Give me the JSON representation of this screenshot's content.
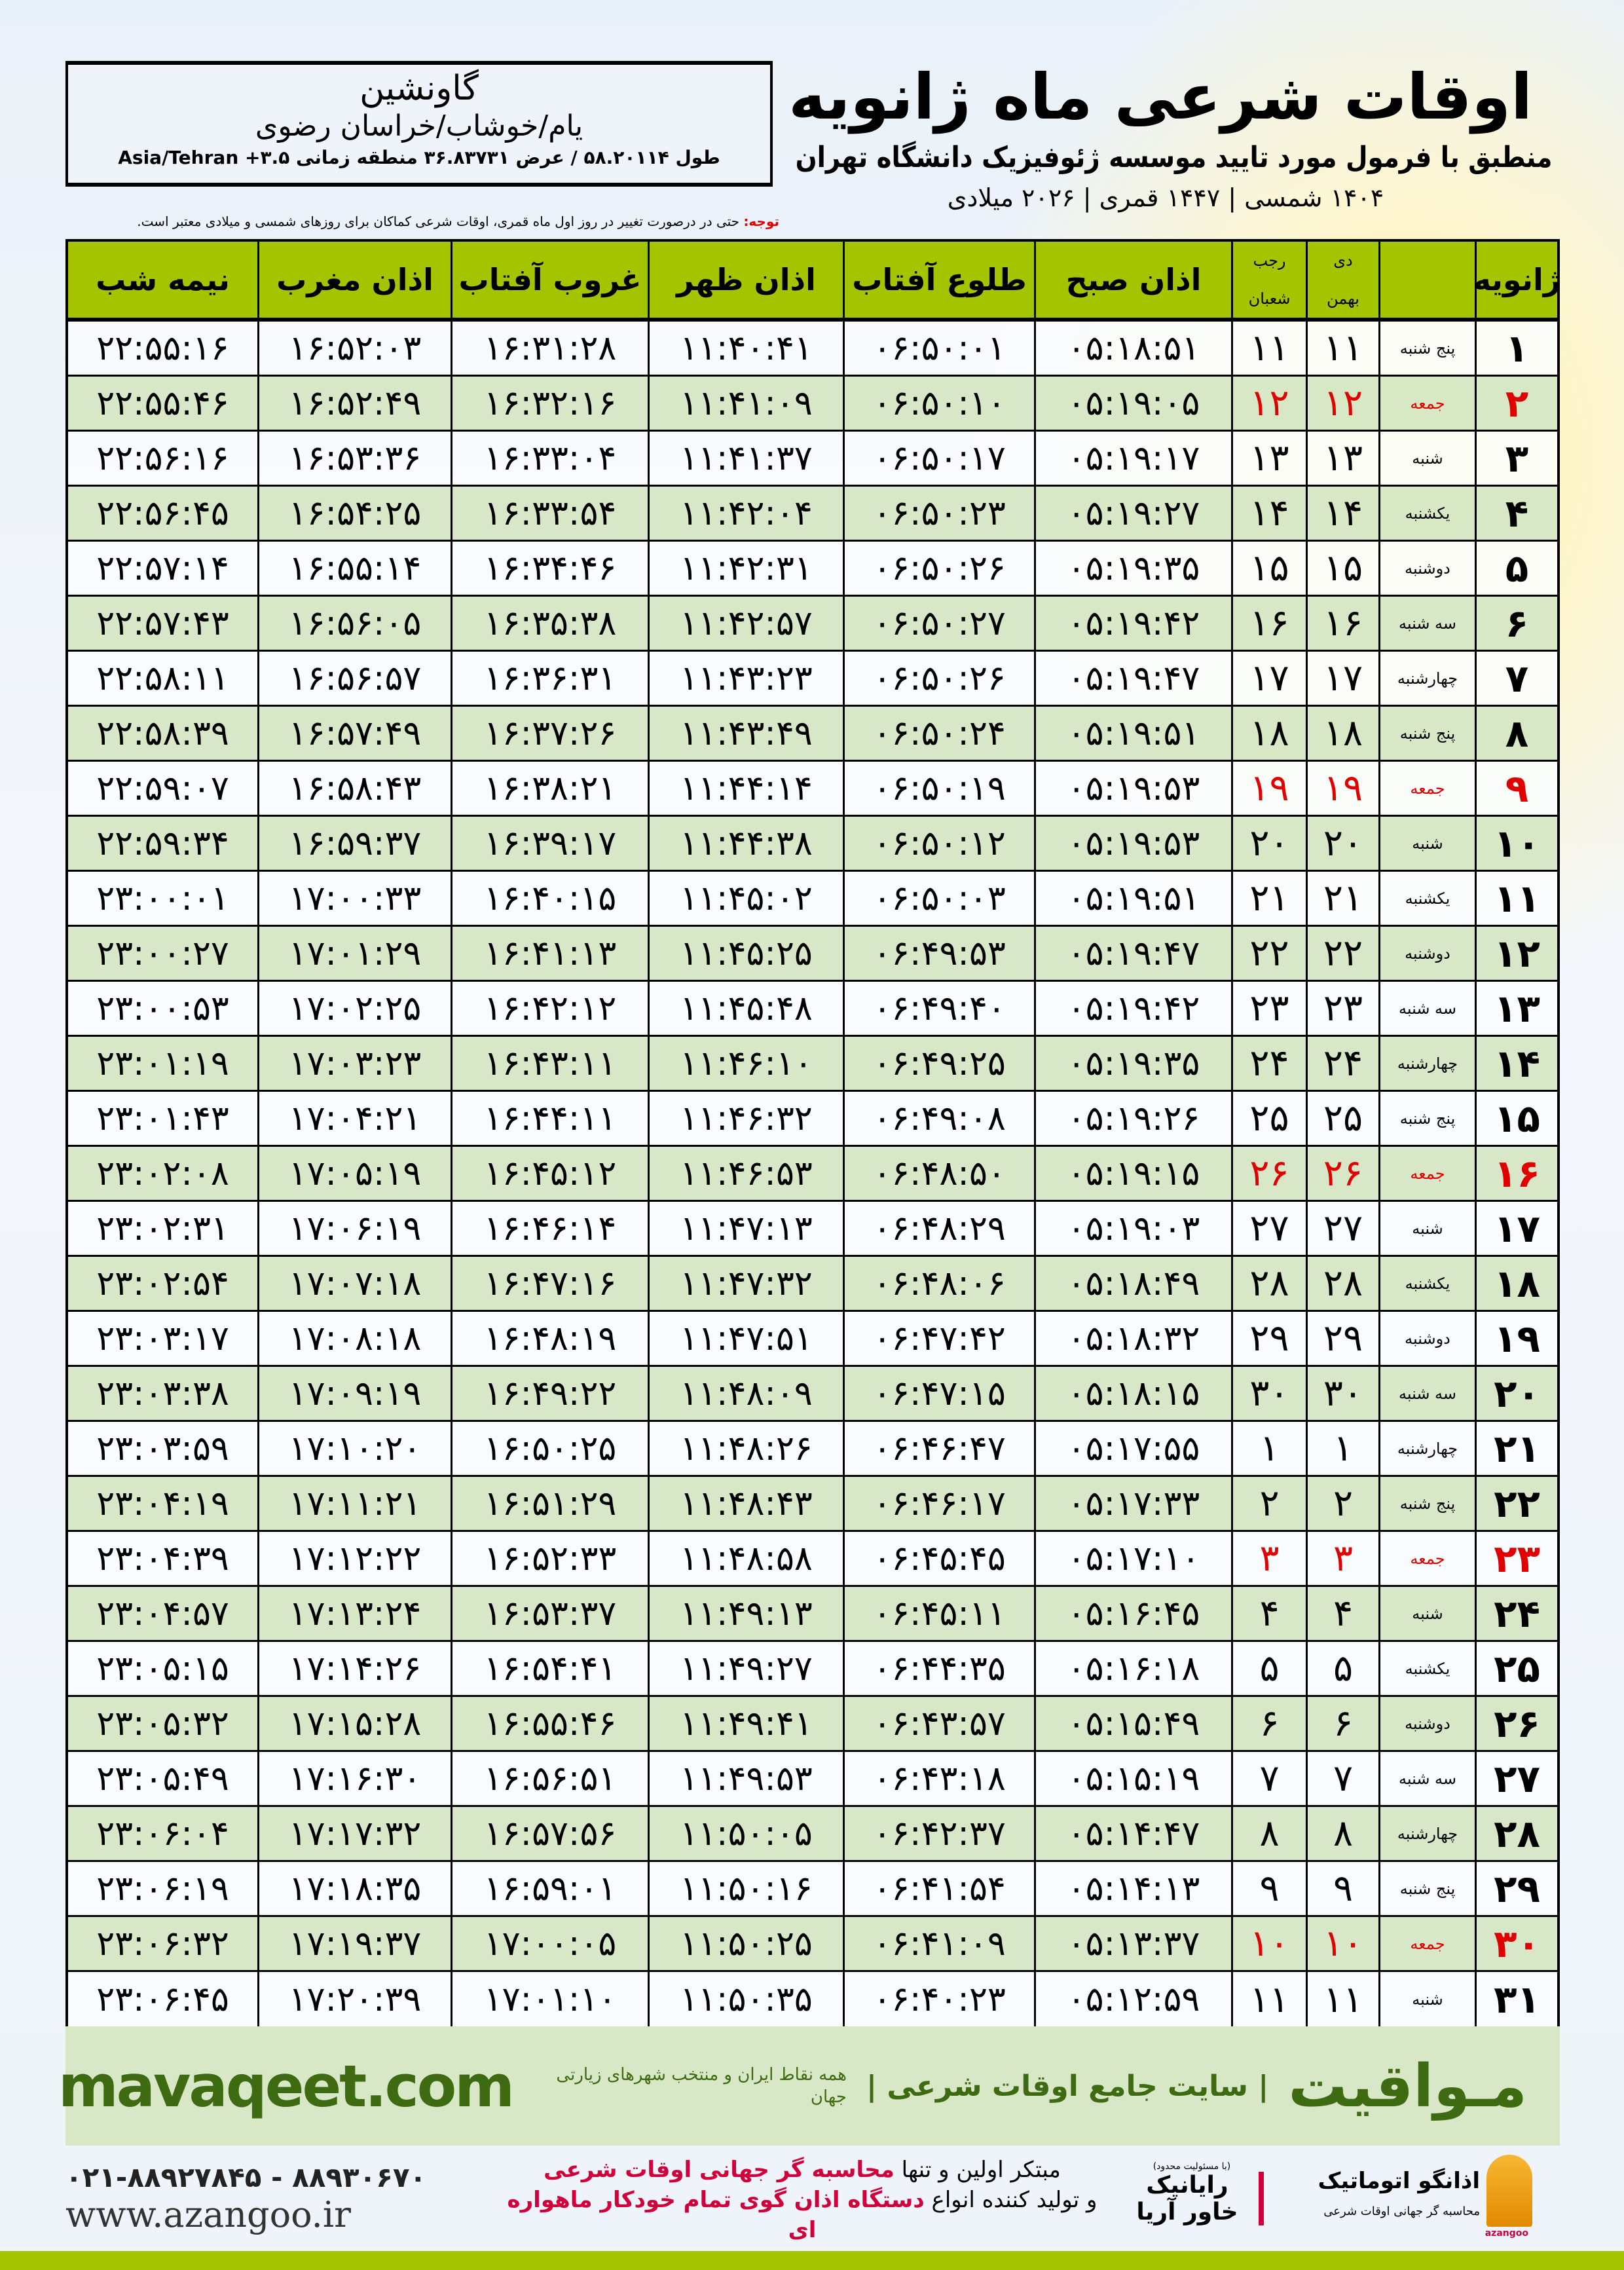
{
  "header": {
    "title": "اوقات شرعی ماه ژانویه",
    "subtitle": "منطبق با فرمول مورد تایید موسسه ژئوفیزیک دانشگاه تهران",
    "dateline": "۱۴۰۴ شمسی | ۱۴۴۷ قمری | ۲۰۲۶ میلادی"
  },
  "location": {
    "city": "گاونشین",
    "region": "یام/خوشاب/خراسان رضوی",
    "coords": "طول ۵۸.۲۰۱۱۴ / عرض ۳۶.۸۳۷۳۱ منطقه زمانی ۳.۵+ Asia/Tehran"
  },
  "note": {
    "label": "توجه:",
    "text": " حتی در درصورت تغییر در روز اول ماه قمری، اوقات شرعی کماکان برای روزهای شمسی و میلادی معتبر است."
  },
  "table": {
    "headers": {
      "month": "ژانویه",
      "solar_top": "دی",
      "solar_bottom": "بهمن",
      "lunar_top": "رجب",
      "lunar_bottom": "شعبان",
      "sobh": "اذان صبح",
      "tolu": "طلوع آفتاب",
      "zohr": "اذان ظهر",
      "ghorub": "غروب آفتاب",
      "maghreb": "اذان مغرب",
      "nime": "نیمه شب"
    },
    "holiday_color": "#e00000",
    "header_color": "#a4c400",
    "rows": [
      [
        "۱",
        "پنج شنبه",
        "۱۱",
        "۱۱",
        "۰۵:۱۸:۵۱",
        "۰۶:۵۰:۰۱",
        "۱۱:۴۰:۴۱",
        "۱۶:۳۱:۲۸",
        "۱۶:۵۲:۰۳",
        "۲۲:۵۵:۱۶",
        false
      ],
      [
        "۲",
        "جمعه",
        "۱۲",
        "۱۲",
        "۰۵:۱۹:۰۵",
        "۰۶:۵۰:۱۰",
        "۱۱:۴۱:۰۹",
        "۱۶:۳۲:۱۶",
        "۱۶:۵۲:۴۹",
        "۲۲:۵۵:۴۶",
        true
      ],
      [
        "۳",
        "شنبه",
        "۱۳",
        "۱۳",
        "۰۵:۱۹:۱۷",
        "۰۶:۵۰:۱۷",
        "۱۱:۴۱:۳۷",
        "۱۶:۳۳:۰۴",
        "۱۶:۵۳:۳۶",
        "۲۲:۵۶:۱۶",
        false
      ],
      [
        "۴",
        "یکشنبه",
        "۱۴",
        "۱۴",
        "۰۵:۱۹:۲۷",
        "۰۶:۵۰:۲۳",
        "۱۱:۴۲:۰۴",
        "۱۶:۳۳:۵۴",
        "۱۶:۵۴:۲۵",
        "۲۲:۵۶:۴۵",
        false
      ],
      [
        "۵",
        "دوشنبه",
        "۱۵",
        "۱۵",
        "۰۵:۱۹:۳۵",
        "۰۶:۵۰:۲۶",
        "۱۱:۴۲:۳۱",
        "۱۶:۳۴:۴۶",
        "۱۶:۵۵:۱۴",
        "۲۲:۵۷:۱۴",
        false
      ],
      [
        "۶",
        "سه شنبه",
        "۱۶",
        "۱۶",
        "۰۵:۱۹:۴۲",
        "۰۶:۵۰:۲۷",
        "۱۱:۴۲:۵۷",
        "۱۶:۳۵:۳۸",
        "۱۶:۵۶:۰۵",
        "۲۲:۵۷:۴۳",
        false
      ],
      [
        "۷",
        "چهارشنبه",
        "۱۷",
        "۱۷",
        "۰۵:۱۹:۴۷",
        "۰۶:۵۰:۲۶",
        "۱۱:۴۳:۲۳",
        "۱۶:۳۶:۳۱",
        "۱۶:۵۶:۵۷",
        "۲۲:۵۸:۱۱",
        false
      ],
      [
        "۸",
        "پنج شنبه",
        "۱۸",
        "۱۸",
        "۰۵:۱۹:۵۱",
        "۰۶:۵۰:۲۴",
        "۱۱:۴۳:۴۹",
        "۱۶:۳۷:۲۶",
        "۱۶:۵۷:۴۹",
        "۲۲:۵۸:۳۹",
        false
      ],
      [
        "۹",
        "جمعه",
        "۱۹",
        "۱۹",
        "۰۵:۱۹:۵۳",
        "۰۶:۵۰:۱۹",
        "۱۱:۴۴:۱۴",
        "۱۶:۳۸:۲۱",
        "۱۶:۵۸:۴۳",
        "۲۲:۵۹:۰۷",
        true
      ],
      [
        "۱۰",
        "شنبه",
        "۲۰",
        "۲۰",
        "۰۵:۱۹:۵۳",
        "۰۶:۵۰:۱۲",
        "۱۱:۴۴:۳۸",
        "۱۶:۳۹:۱۷",
        "۱۶:۵۹:۳۷",
        "۲۲:۵۹:۳۴",
        false
      ],
      [
        "۱۱",
        "یکشنبه",
        "۲۱",
        "۲۱",
        "۰۵:۱۹:۵۱",
        "۰۶:۵۰:۰۳",
        "۱۱:۴۵:۰۲",
        "۱۶:۴۰:۱۵",
        "۱۷:۰۰:۳۳",
        "۲۳:۰۰:۰۱",
        false
      ],
      [
        "۱۲",
        "دوشنبه",
        "۲۲",
        "۲۲",
        "۰۵:۱۹:۴۷",
        "۰۶:۴۹:۵۳",
        "۱۱:۴۵:۲۵",
        "۱۶:۴۱:۱۳",
        "۱۷:۰۱:۲۹",
        "۲۳:۰۰:۲۷",
        false
      ],
      [
        "۱۳",
        "سه شنبه",
        "۲۳",
        "۲۳",
        "۰۵:۱۹:۴۲",
        "۰۶:۴۹:۴۰",
        "۱۱:۴۵:۴۸",
        "۱۶:۴۲:۱۲",
        "۱۷:۰۲:۲۵",
        "۲۳:۰۰:۵۳",
        false
      ],
      [
        "۱۴",
        "چهارشنبه",
        "۲۴",
        "۲۴",
        "۰۵:۱۹:۳۵",
        "۰۶:۴۹:۲۵",
        "۱۱:۴۶:۱۰",
        "۱۶:۴۳:۱۱",
        "۱۷:۰۳:۲۳",
        "۲۳:۰۱:۱۹",
        false
      ],
      [
        "۱۵",
        "پنج شنبه",
        "۲۵",
        "۲۵",
        "۰۵:۱۹:۲۶",
        "۰۶:۴۹:۰۸",
        "۱۱:۴۶:۳۲",
        "۱۶:۴۴:۱۱",
        "۱۷:۰۴:۲۱",
        "۲۳:۰۱:۴۳",
        false
      ],
      [
        "۱۶",
        "جمعه",
        "۲۶",
        "۲۶",
        "۰۵:۱۹:۱۵",
        "۰۶:۴۸:۵۰",
        "۱۱:۴۶:۵۳",
        "۱۶:۴۵:۱۲",
        "۱۷:۰۵:۱۹",
        "۲۳:۰۲:۰۸",
        true
      ],
      [
        "۱۷",
        "شنبه",
        "۲۷",
        "۲۷",
        "۰۵:۱۹:۰۳",
        "۰۶:۴۸:۲۹",
        "۱۱:۴۷:۱۳",
        "۱۶:۴۶:۱۴",
        "۱۷:۰۶:۱۹",
        "۲۳:۰۲:۳۱",
        false
      ],
      [
        "۱۸",
        "یکشنبه",
        "۲۸",
        "۲۸",
        "۰۵:۱۸:۴۹",
        "۰۶:۴۸:۰۶",
        "۱۱:۴۷:۳۲",
        "۱۶:۴۷:۱۶",
        "۱۷:۰۷:۱۸",
        "۲۳:۰۲:۵۴",
        false
      ],
      [
        "۱۹",
        "دوشنبه",
        "۲۹",
        "۲۹",
        "۰۵:۱۸:۳۲",
        "۰۶:۴۷:۴۲",
        "۱۱:۴۷:۵۱",
        "۱۶:۴۸:۱۹",
        "۱۷:۰۸:۱۸",
        "۲۳:۰۳:۱۷",
        false
      ],
      [
        "۲۰",
        "سه شنبه",
        "۳۰",
        "۳۰",
        "۰۵:۱۸:۱۵",
        "۰۶:۴۷:۱۵",
        "۱۱:۴۸:۰۹",
        "۱۶:۴۹:۲۲",
        "۱۷:۰۹:۱۹",
        "۲۳:۰۳:۳۸",
        false
      ],
      [
        "۲۱",
        "چهارشنبه",
        "۱",
        "۱",
        "۰۵:۱۷:۵۵",
        "۰۶:۴۶:۴۷",
        "۱۱:۴۸:۲۶",
        "۱۶:۵۰:۲۵",
        "۱۷:۱۰:۲۰",
        "۲۳:۰۳:۵۹",
        false
      ],
      [
        "۲۲",
        "پنج شنبه",
        "۲",
        "۲",
        "۰۵:۱۷:۳۳",
        "۰۶:۴۶:۱۷",
        "۱۱:۴۸:۴۳",
        "۱۶:۵۱:۲۹",
        "۱۷:۱۱:۲۱",
        "۲۳:۰۴:۱۹",
        false
      ],
      [
        "۲۳",
        "جمعه",
        "۳",
        "۳",
        "۰۵:۱۷:۱۰",
        "۰۶:۴۵:۴۵",
        "۱۱:۴۸:۵۸",
        "۱۶:۵۲:۳۳",
        "۱۷:۱۲:۲۲",
        "۲۳:۰۴:۳۹",
        true
      ],
      [
        "۲۴",
        "شنبه",
        "۴",
        "۴",
        "۰۵:۱۶:۴۵",
        "۰۶:۴۵:۱۱",
        "۱۱:۴۹:۱۳",
        "۱۶:۵۳:۳۷",
        "۱۷:۱۳:۲۴",
        "۲۳:۰۴:۵۷",
        false
      ],
      [
        "۲۵",
        "یکشنبه",
        "۵",
        "۵",
        "۰۵:۱۶:۱۸",
        "۰۶:۴۴:۳۵",
        "۱۱:۴۹:۲۷",
        "۱۶:۵۴:۴۱",
        "۱۷:۱۴:۲۶",
        "۲۳:۰۵:۱۵",
        false
      ],
      [
        "۲۶",
        "دوشنبه",
        "۶",
        "۶",
        "۰۵:۱۵:۴۹",
        "۰۶:۴۳:۵۷",
        "۱۱:۴۹:۴۱",
        "۱۶:۵۵:۴۶",
        "۱۷:۱۵:۲۸",
        "۲۳:۰۵:۳۲",
        false
      ],
      [
        "۲۷",
        "سه شنبه",
        "۷",
        "۷",
        "۰۵:۱۵:۱۹",
        "۰۶:۴۳:۱۸",
        "۱۱:۴۹:۵۳",
        "۱۶:۵۶:۵۱",
        "۱۷:۱۶:۳۰",
        "۲۳:۰۵:۴۹",
        false
      ],
      [
        "۲۸",
        "چهارشنبه",
        "۸",
        "۸",
        "۰۵:۱۴:۴۷",
        "۰۶:۴۲:۳۷",
        "۱۱:۵۰:۰۵",
        "۱۶:۵۷:۵۶",
        "۱۷:۱۷:۳۲",
        "۲۳:۰۶:۰۴",
        false
      ],
      [
        "۲۹",
        "پنج شنبه",
        "۹",
        "۹",
        "۰۵:۱۴:۱۳",
        "۰۶:۴۱:۵۴",
        "۱۱:۵۰:۱۶",
        "۱۶:۵۹:۰۱",
        "۱۷:۱۸:۳۵",
        "۲۳:۰۶:۱۹",
        false
      ],
      [
        "۳۰",
        "جمعه",
        "۱۰",
        "۱۰",
        "۰۵:۱۳:۳۷",
        "۰۶:۴۱:۰۹",
        "۱۱:۵۰:۲۵",
        "۱۷:۰۰:۰۵",
        "۱۷:۱۹:۳۷",
        "۲۳:۰۶:۳۲",
        true
      ],
      [
        "۳۱",
        "شنبه",
        "۱۱",
        "۱۱",
        "۰۵:۱۲:۵۹",
        "۰۶:۴۰:۲۳",
        "۱۱:۵۰:۳۵",
        "۱۷:۰۱:۱۰",
        "۱۷:۲۰:۳۹",
        "۲۳:۰۶:۴۵",
        false
      ]
    ]
  },
  "banner": {
    "brand": "مـواقیت",
    "site_desc": "| سایت جامع اوقات شرعی |",
    "site_tag": "همه نقاط ایران و منتخب شهرهای زیارتی جهان",
    "url": "mavaqeet.com",
    "color": "#3e6b12"
  },
  "footer": {
    "phone": "۰۲۱-۸۸۹۲۷۸۴۵ - ۸۸۹۳۰۶۷۰",
    "web": "www.azangoo.ir",
    "slogan_1a": "مبتکر اولین و تنها ",
    "slogan_1b": "محاسبه گر جهانی اوقات شرعی",
    "slogan_2a": "و تولید کننده انواع ",
    "slogan_2b": "دستگاه اذان گوی تمام خودکار ماهواره ای",
    "logo_rayanik": "رایانیک خاور آریا",
    "logo_rayanik_small": "(با مسئولیت محدود)",
    "logo_azangoo": "اذانگو اتوماتیک",
    "logo_azangoo_sub": "محاسبه گر جهانی اوقات شرعی",
    "logo_azangoo_en": "azangoo"
  }
}
